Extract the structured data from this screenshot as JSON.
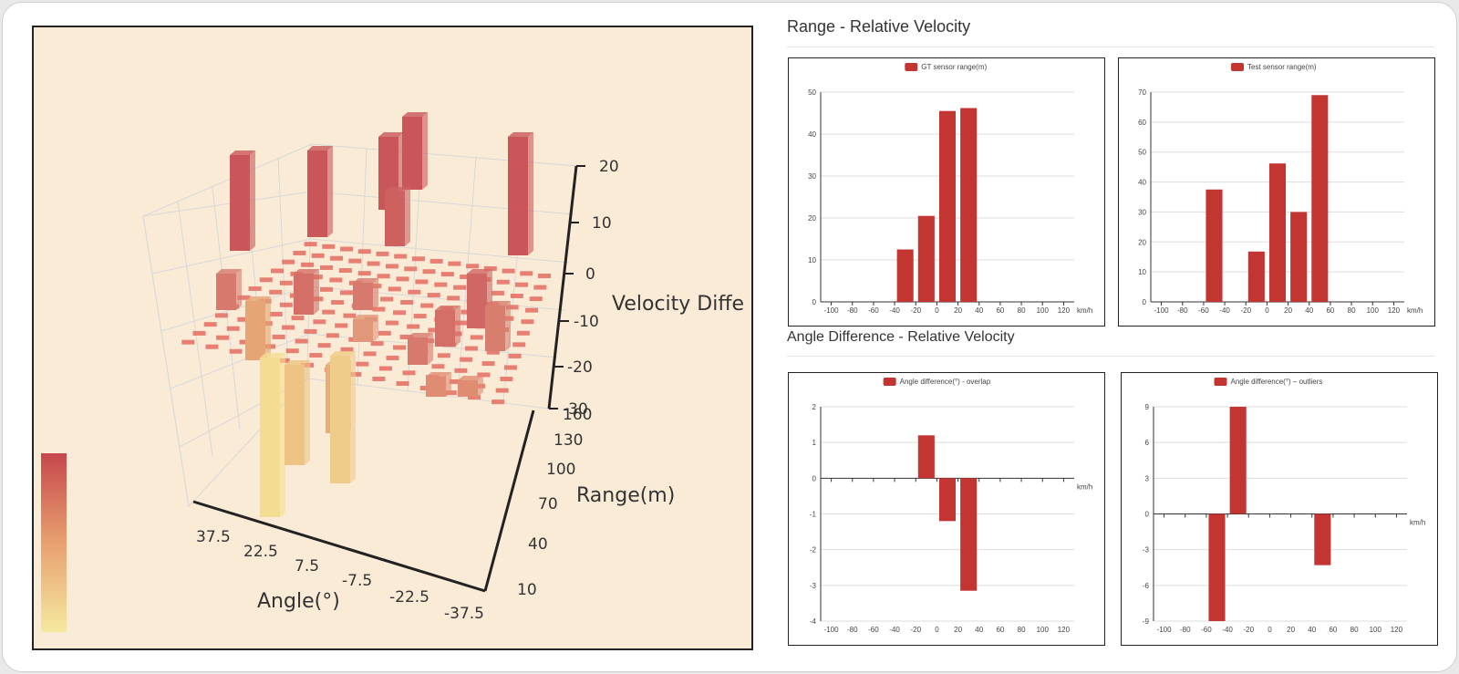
{
  "plot3d": {
    "x_label": "Angle(°)",
    "y_label": "Range(m)",
    "z_label": "Velocity Diffe",
    "x_ticks": [
      "37.5",
      "22.5",
      "7.5",
      "-7.5",
      "-22.5",
      "-37.5"
    ],
    "y_ticks": [
      "160",
      "130",
      "100",
      "70",
      "40",
      "10"
    ],
    "z_ticks": [
      "20",
      "10",
      "0",
      "-10",
      "-20",
      "-30"
    ],
    "color_scale": [
      "#f5e9a0",
      "#e8a070",
      "#c6474c"
    ]
  },
  "sections": {
    "range_title": "Range - Relative Velocity",
    "angle_title": "Angle Difference - Relative Velocity"
  },
  "colors": {
    "bar": "#c23531",
    "background": "#faebd7"
  },
  "chart_data": [
    {
      "type": "bar",
      "series": [
        {
          "name": "GT sensor range(m)",
          "values": [
            12.5,
            20.5,
            45.5,
            46.2
          ]
        }
      ],
      "x": [
        -30,
        -10,
        10,
        30
      ],
      "xlim": [
        -110,
        130
      ],
      "x_ticks": [
        "-100",
        "-80",
        "-60",
        "-40",
        "-20",
        "0",
        "20",
        "40",
        "60",
        "80",
        "100",
        "120"
      ],
      "x_unit": "km/h",
      "ylim": [
        0,
        50
      ],
      "y_ticks": [
        "0",
        "10",
        "20",
        "30",
        "40",
        "50"
      ],
      "grid": true,
      "legend": "top-center"
    },
    {
      "type": "bar",
      "series": [
        {
          "name": "Test sensor range(m)",
          "values": [
            37.5,
            16.8,
            46.2,
            30,
            69
          ]
        }
      ],
      "x": [
        -50,
        -10,
        10,
        30,
        50
      ],
      "xlim": [
        -110,
        130
      ],
      "x_ticks": [
        "-100",
        "-80",
        "-60",
        "-40",
        "-20",
        "0",
        "20",
        "40",
        "60",
        "80",
        "100",
        "120"
      ],
      "x_unit": "km/h",
      "ylim": [
        0,
        70
      ],
      "y_ticks": [
        "0",
        "10",
        "20",
        "30",
        "40",
        "50",
        "60",
        "70"
      ],
      "grid": true,
      "legend": "top-center"
    },
    {
      "type": "bar",
      "series": [
        {
          "name": "Angle difference(°) - overlap",
          "values": [
            1.2,
            -1.2,
            -3.15
          ]
        }
      ],
      "x": [
        -10,
        10,
        30
      ],
      "xlim": [
        -110,
        130
      ],
      "x_ticks": [
        "-100",
        "-80",
        "-60",
        "-40",
        "-20",
        "0",
        "20",
        "40",
        "60",
        "80",
        "100",
        "120"
      ],
      "x_unit": "km/h",
      "ylim": [
        -4,
        2
      ],
      "y_ticks": [
        "-4",
        "-3",
        "-2",
        "-1",
        "0",
        "1",
        "2"
      ],
      "grid": true,
      "legend": "top-center"
    },
    {
      "type": "bar",
      "series": [
        {
          "name": "Angle difference(°) – outliers",
          "values": [
            -9,
            9,
            -4.3
          ]
        }
      ],
      "x": [
        -50,
        -30,
        50
      ],
      "xlim": [
        -110,
        130
      ],
      "x_ticks": [
        "-100",
        "-80",
        "-60",
        "-40",
        "-20",
        "0",
        "20",
        "40",
        "60",
        "80",
        "100",
        "120"
      ],
      "x_unit": "km/h",
      "ylim": [
        -9,
        9
      ],
      "y_ticks": [
        "-9",
        "-6",
        "-3",
        "0",
        "3",
        "6",
        "9"
      ],
      "grid": true,
      "legend": "top-center"
    }
  ]
}
